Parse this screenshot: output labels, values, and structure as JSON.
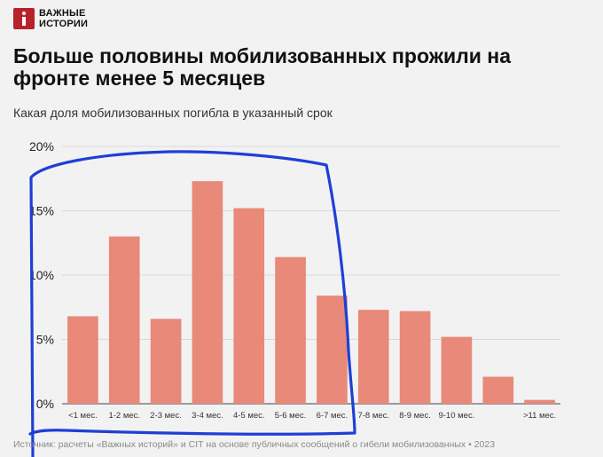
{
  "brand": {
    "line1": "ВАЖНЫЕ",
    "line2": "ИСТОРИИ",
    "logo_icon": "info-i-icon",
    "color": "#b8222b"
  },
  "title": "Больше половины мобилизованных прожили на фронте менее 5 месяцев",
  "subtitle": "Какая доля мобилизованных погибла в указанный срок",
  "source": "Источник: расчеты «Важных историй» и CIT на основе публичных сообщений о гибели мобилизованных • 2023",
  "chart_data": {
    "type": "bar",
    "categories": [
      "<1 мес.",
      "1-2 мес.",
      "2-3 мес.",
      "3-4 мес.",
      "4-5 мес.",
      "5-6 мес.",
      "6-7 мес.",
      "7-8 мес.",
      "8-9 мес.",
      "9-10 мес.",
      "",
      ">11 мес."
    ],
    "values": [
      6.8,
      13.0,
      6.6,
      17.3,
      15.2,
      11.4,
      8.4,
      7.3,
      7.2,
      5.2,
      2.1,
      0.3
    ],
    "yticks": [
      "0%",
      "5%",
      "10%",
      "15%",
      "20%"
    ],
    "ylim": [
      0,
      20
    ],
    "grid": true,
    "bar_color": "#e8897a"
  }
}
